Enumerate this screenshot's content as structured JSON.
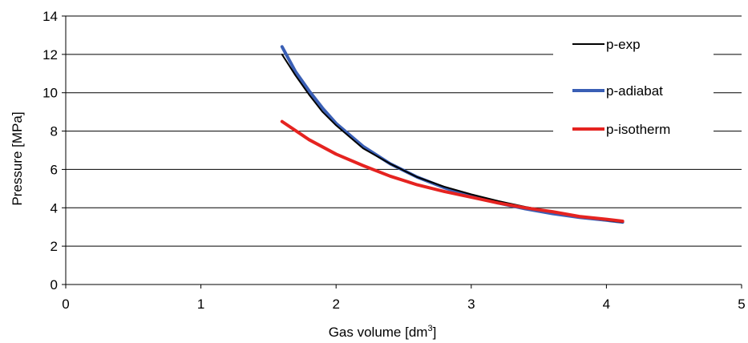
{
  "chart_data": {
    "type": "line",
    "title": "",
    "xlabel_main": "Gas volume [dm",
    "xlabel_sup": "3",
    "xlabel_end": "]",
    "ylabel": "Pressure [MPa]",
    "xlim": [
      0,
      5
    ],
    "ylim": [
      0,
      14
    ],
    "x_ticks": [
      "0",
      "1",
      "2",
      "3",
      "4",
      "5"
    ],
    "y_ticks": [
      "0",
      "2",
      "4",
      "6",
      "8",
      "10",
      "12",
      "14"
    ],
    "grid": "horizontal",
    "legend_position": "top-right",
    "series": [
      {
        "name": "p-exp",
        "color": "#000000",
        "x": [
          1.6,
          1.7,
          1.8,
          1.9,
          2.0,
          2.2,
          2.4,
          2.6,
          2.8,
          3.0,
          3.2,
          3.4,
          3.6,
          3.8,
          4.0,
          4.12
        ],
        "y": [
          12.0,
          10.9,
          9.9,
          9.0,
          8.3,
          7.1,
          6.3,
          5.6,
          5.1,
          4.7,
          4.35,
          4.05,
          3.8,
          3.55,
          3.35,
          3.25
        ]
      },
      {
        "name": "p-adiabat",
        "color": "#3a5fb5",
        "x": [
          1.6,
          1.7,
          1.8,
          1.9,
          2.0,
          2.2,
          2.4,
          2.6,
          2.8,
          3.0,
          3.2,
          3.4,
          3.6,
          3.8,
          4.0,
          4.12
        ],
        "y": [
          12.4,
          11.1,
          10.1,
          9.2,
          8.4,
          7.2,
          6.3,
          5.6,
          5.05,
          4.6,
          4.25,
          3.95,
          3.7,
          3.5,
          3.35,
          3.25
        ]
      },
      {
        "name": "p-isotherm",
        "color": "#e52320",
        "x": [
          1.6,
          1.8,
          2.0,
          2.2,
          2.4,
          2.6,
          2.8,
          3.0,
          3.2,
          3.4,
          3.6,
          3.8,
          4.0,
          4.12
        ],
        "y": [
          8.5,
          7.55,
          6.8,
          6.2,
          5.65,
          5.2,
          4.85,
          4.55,
          4.25,
          4.0,
          3.8,
          3.55,
          3.4,
          3.3
        ]
      }
    ]
  }
}
